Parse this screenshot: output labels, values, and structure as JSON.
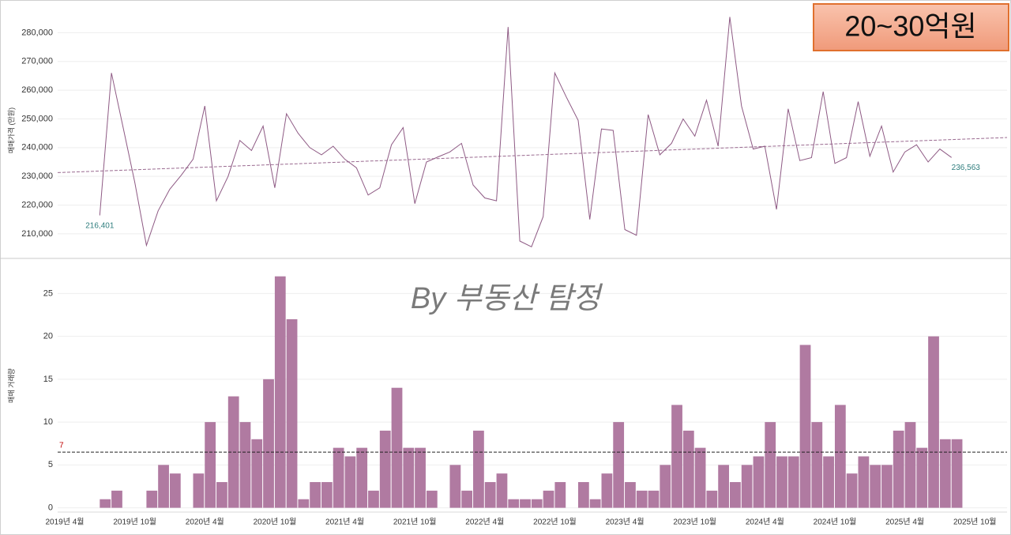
{
  "title": "20~30억원",
  "watermark": "By 부동산 탐정",
  "chart_data": [
    {
      "type": "line",
      "ylabel": "매매가격 (만원)",
      "color": "#8e5a84",
      "label_color": "#2e7d7d",
      "trend_color": "#9a6a90",
      "categories": [
        "2019년 4월",
        null,
        null,
        null,
        null,
        null,
        "2019년 10월",
        null,
        null,
        null,
        null,
        null,
        "2020년 4월",
        null,
        null,
        null,
        null,
        null,
        "2020년 10월",
        null,
        null,
        null,
        null,
        null,
        "2021년 4월",
        null,
        null,
        null,
        null,
        null,
        "2021년 10월",
        null,
        null,
        null,
        null,
        null,
        "2022년 4월",
        null,
        null,
        null,
        null,
        null,
        "2022년 10월",
        null,
        null,
        null,
        null,
        null,
        "2023년 4월",
        null,
        null,
        null,
        null,
        null,
        "2023년 10월",
        null,
        null,
        null,
        null,
        null,
        "2024년 4월",
        null,
        null,
        null,
        null,
        null,
        "2024년 10월",
        null,
        null,
        null,
        null,
        null,
        "2025년 4월",
        null,
        null,
        null,
        null,
        null,
        "2025년 10월"
      ],
      "values": [
        null,
        null,
        null,
        216401,
        266000,
        247000,
        228000,
        206000,
        218000,
        225500,
        230500,
        236000,
        254500,
        221500,
        230000,
        242500,
        239000,
        247500,
        226000,
        251800,
        245000,
        240000,
        237500,
        240500,
        236000,
        233000,
        223500,
        226000,
        241000,
        247000,
        220500,
        235000,
        236800,
        238500,
        241500,
        227000,
        222500,
        221500,
        282000,
        207500,
        205500,
        216000,
        266000,
        257500,
        249500,
        215000,
        246500,
        246000,
        211500,
        209500,
        251500,
        237500,
        241500,
        250000,
        244000,
        256500,
        240500,
        285500,
        254500,
        239500,
        240500,
        218500,
        253500,
        235500,
        236500,
        259500,
        234500,
        236500,
        256000,
        237000,
        247500,
        231500,
        238500,
        241000,
        235000,
        239500,
        236563,
        null,
        null
      ],
      "value_labels": [
        null,
        null,
        null,
        "216,401",
        null,
        null,
        null,
        null,
        null,
        null,
        null,
        null,
        null,
        null,
        null,
        null,
        null,
        null,
        null,
        null,
        null,
        null,
        null,
        null,
        null,
        null,
        null,
        null,
        null,
        null,
        null,
        null,
        null,
        null,
        null,
        null,
        null,
        null,
        null,
        null,
        null,
        null,
        null,
        null,
        null,
        null,
        null,
        null,
        null,
        null,
        null,
        null,
        null,
        null,
        null,
        null,
        null,
        null,
        null,
        null,
        null,
        null,
        null,
        null,
        null,
        null,
        null,
        null,
        null,
        null,
        null,
        null,
        null,
        null,
        null,
        null,
        "236,563",
        null,
        null
      ],
      "trend_start": 231400,
      "trend_end": 243100,
      "ylim": [
        202000,
        290000
      ],
      "yticks": [
        {
          "value": 210000,
          "label": "210,000"
        },
        {
          "value": 220000,
          "label": "220,000"
        },
        {
          "value": 230000,
          "label": "230,000"
        },
        {
          "value": 240000,
          "label": "240,000"
        },
        {
          "value": 250000,
          "label": "250,000"
        },
        {
          "value": 260000,
          "label": "260,000"
        },
        {
          "value": 270000,
          "label": "270,000"
        },
        {
          "value": 280000,
          "label": "280,000"
        }
      ],
      "grid": true
    },
    {
      "type": "bar",
      "ylabel": "매매 거래량",
      "color": "#b07aa1",
      "categories": [
        "2019년 4월",
        null,
        null,
        null,
        null,
        null,
        "2019년 10월",
        null,
        null,
        null,
        null,
        null,
        "2020년 4월",
        null,
        null,
        null,
        null,
        null,
        "2020년 10월",
        null,
        null,
        null,
        null,
        null,
        "2021년 4월",
        null,
        null,
        null,
        null,
        null,
        "2021년 10월",
        null,
        null,
        null,
        null,
        null,
        "2022년 4월",
        null,
        null,
        null,
        null,
        null,
        "2022년 10월",
        null,
        null,
        null,
        null,
        null,
        "2023년 4월",
        null,
        null,
        null,
        null,
        null,
        "2023년 10월",
        null,
        null,
        null,
        null,
        null,
        "2024년 4월",
        null,
        null,
        null,
        null,
        null,
        "2024년 10월",
        null,
        null,
        null,
        null,
        null,
        "2025년 4월",
        null,
        null,
        null,
        null,
        null,
        "2025년 10월"
      ],
      "values": [
        null,
        null,
        null,
        1,
        2,
        null,
        null,
        2,
        5,
        4,
        null,
        4,
        10,
        3,
        13,
        10,
        8,
        15,
        27,
        22,
        1,
        3,
        3,
        7,
        6,
        7,
        2,
        9,
        14,
        7,
        7,
        2,
        null,
        5,
        2,
        9,
        3,
        4,
        1,
        1,
        1,
        2,
        3,
        null,
        3,
        1,
        4,
        10,
        3,
        2,
        2,
        5,
        12,
        9,
        7,
        2,
        5,
        3,
        5,
        6,
        10,
        6,
        6,
        19,
        10,
        6,
        12,
        4,
        6,
        5,
        5,
        9,
        10,
        7,
        20,
        8,
        8,
        null,
        null
      ],
      "reference_line": {
        "value": 6.5,
        "label": "7",
        "color": "#c00000"
      },
      "ylim": [
        -0.5,
        29
      ],
      "yticks": [
        0,
        5,
        10,
        15,
        20,
        25
      ],
      "grid": true
    }
  ]
}
